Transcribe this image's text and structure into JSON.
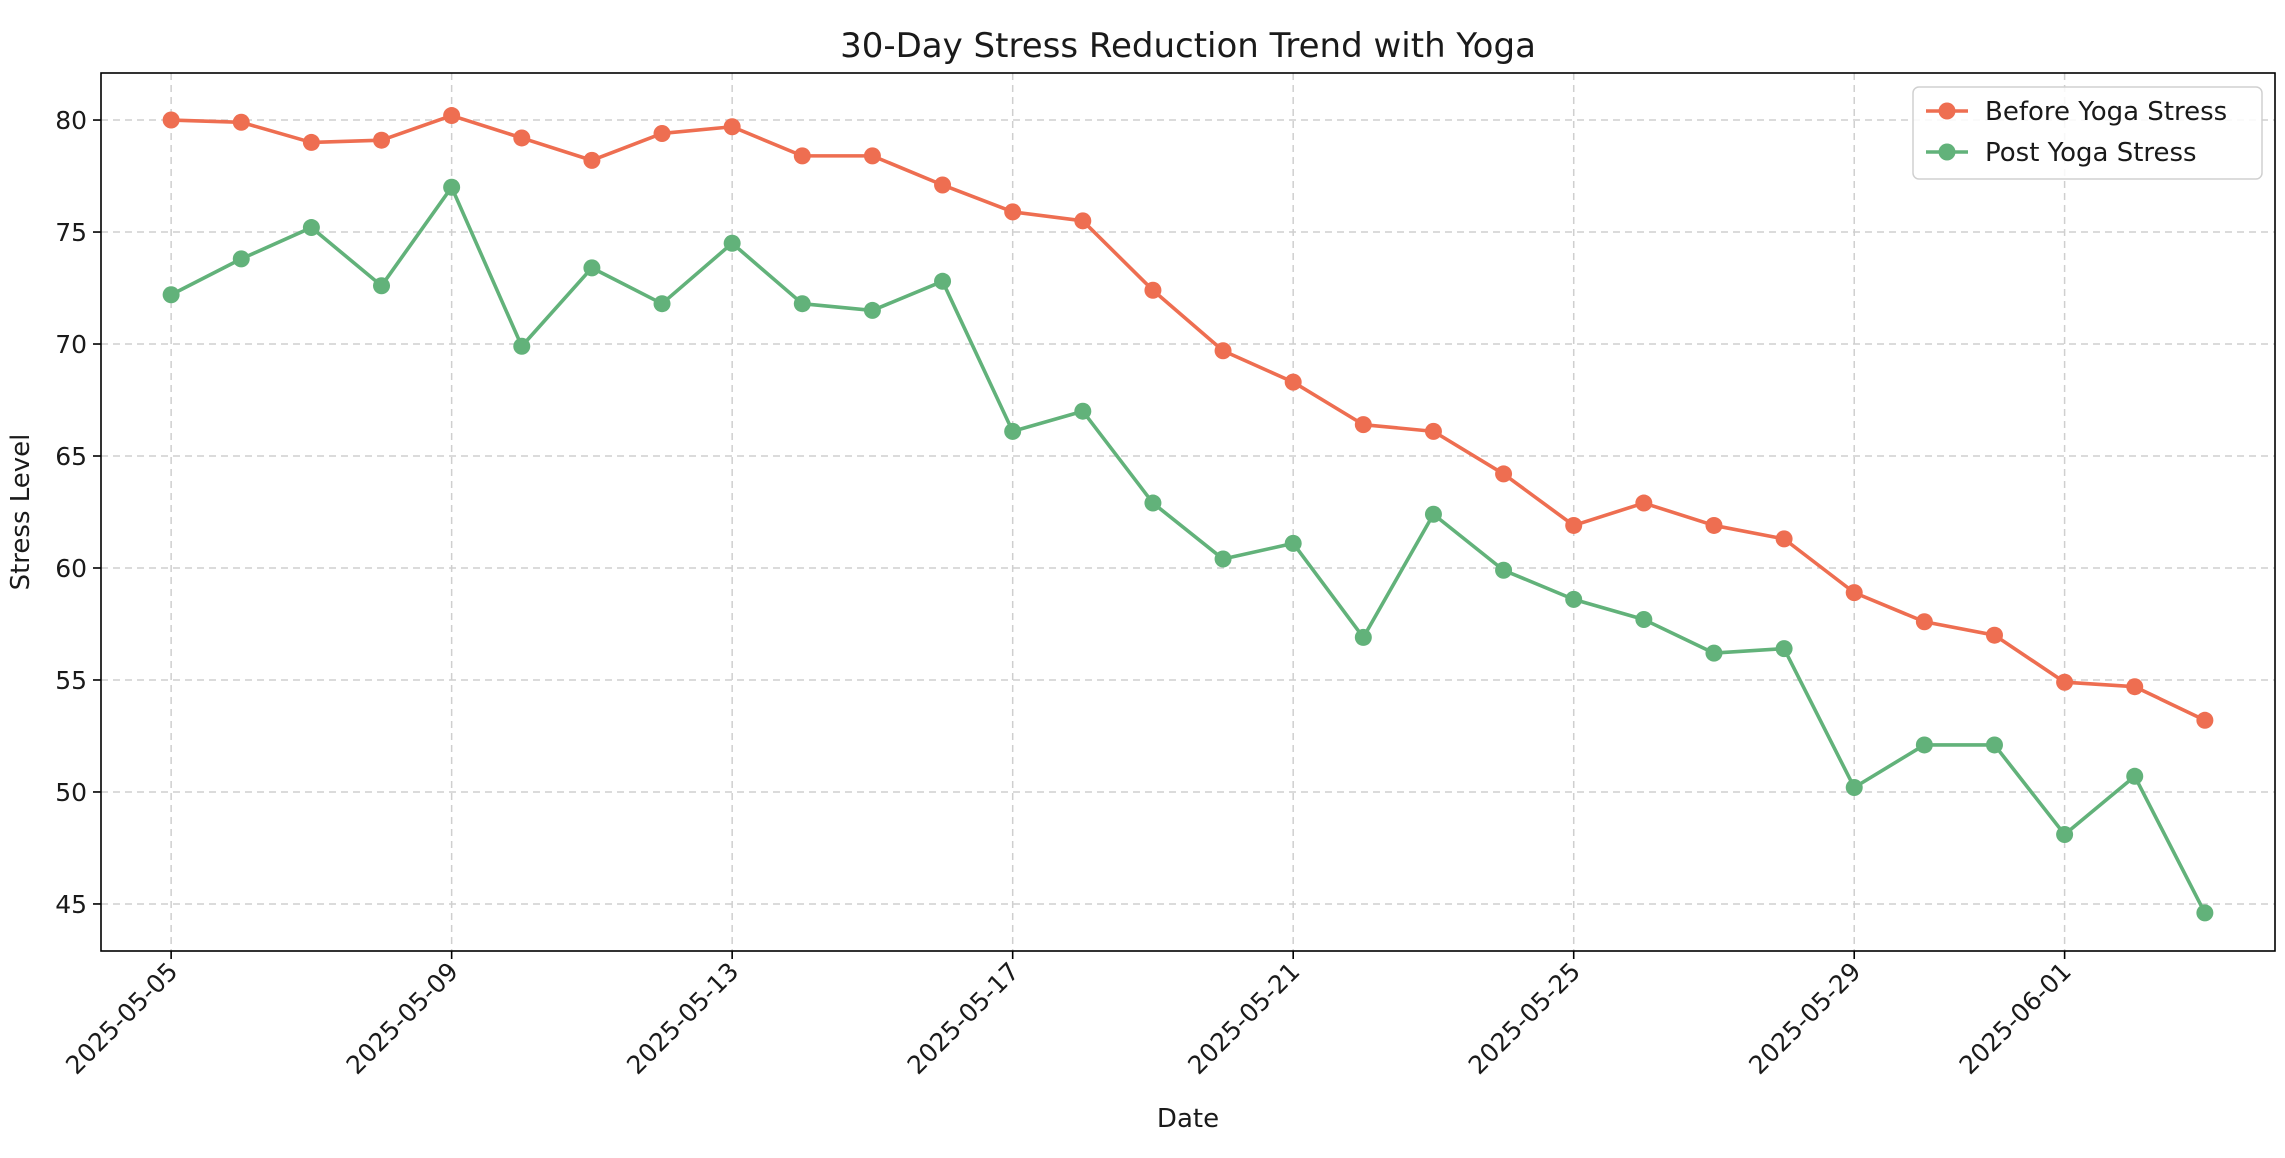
{
  "chart_data": {
    "type": "line",
    "title": "30-Day Stress Reduction Trend with Yoga",
    "xlabel": "Date",
    "ylabel": "Stress Level",
    "x": [
      "2025-05-05",
      "2025-05-06",
      "2025-05-07",
      "2025-05-08",
      "2025-05-09",
      "2025-05-10",
      "2025-05-11",
      "2025-05-12",
      "2025-05-13",
      "2025-05-14",
      "2025-05-15",
      "2025-05-16",
      "2025-05-17",
      "2025-05-18",
      "2025-05-19",
      "2025-05-20",
      "2025-05-21",
      "2025-05-22",
      "2025-05-23",
      "2025-05-24",
      "2025-05-25",
      "2025-05-26",
      "2025-05-27",
      "2025-05-28",
      "2025-05-29",
      "2025-05-30",
      "2025-05-31",
      "2025-06-01",
      "2025-06-02",
      "2025-06-03"
    ],
    "x_ticks": [
      "2025-05-05",
      "2025-05-09",
      "2025-05-13",
      "2025-05-17",
      "2025-05-21",
      "2025-05-25",
      "2025-05-29",
      "2025-06-01"
    ],
    "xlim": [
      "2025-05-04",
      "2025-06-04"
    ],
    "ylim": [
      42.9,
      82.1
    ],
    "y_ticks": [
      45,
      50,
      55,
      60,
      65,
      70,
      75,
      80
    ],
    "grid": true,
    "legend_position": "top-right",
    "series": [
      {
        "name": "Before Yoga Stress",
        "color": "#ee6e51",
        "values": [
          80.0,
          79.9,
          79.0,
          79.1,
          80.2,
          79.2,
          78.2,
          79.4,
          79.7,
          78.4,
          78.4,
          77.1,
          75.9,
          75.5,
          72.4,
          69.7,
          68.3,
          66.4,
          66.1,
          64.2,
          61.9,
          62.9,
          61.9,
          61.3,
          58.9,
          57.6,
          57.0,
          54.9,
          54.7,
          53.2
        ]
      },
      {
        "name": "Post Yoga Stress",
        "color": "#62b27a",
        "values": [
          72.2,
          73.8,
          75.2,
          72.6,
          77.0,
          69.9,
          73.4,
          71.8,
          74.5,
          71.8,
          71.5,
          72.8,
          66.1,
          67.0,
          62.9,
          60.4,
          61.1,
          56.9,
          62.4,
          59.9,
          58.6,
          57.7,
          56.2,
          56.4,
          50.2,
          52.1,
          52.1,
          48.1,
          50.7,
          44.6
        ]
      }
    ]
  }
}
